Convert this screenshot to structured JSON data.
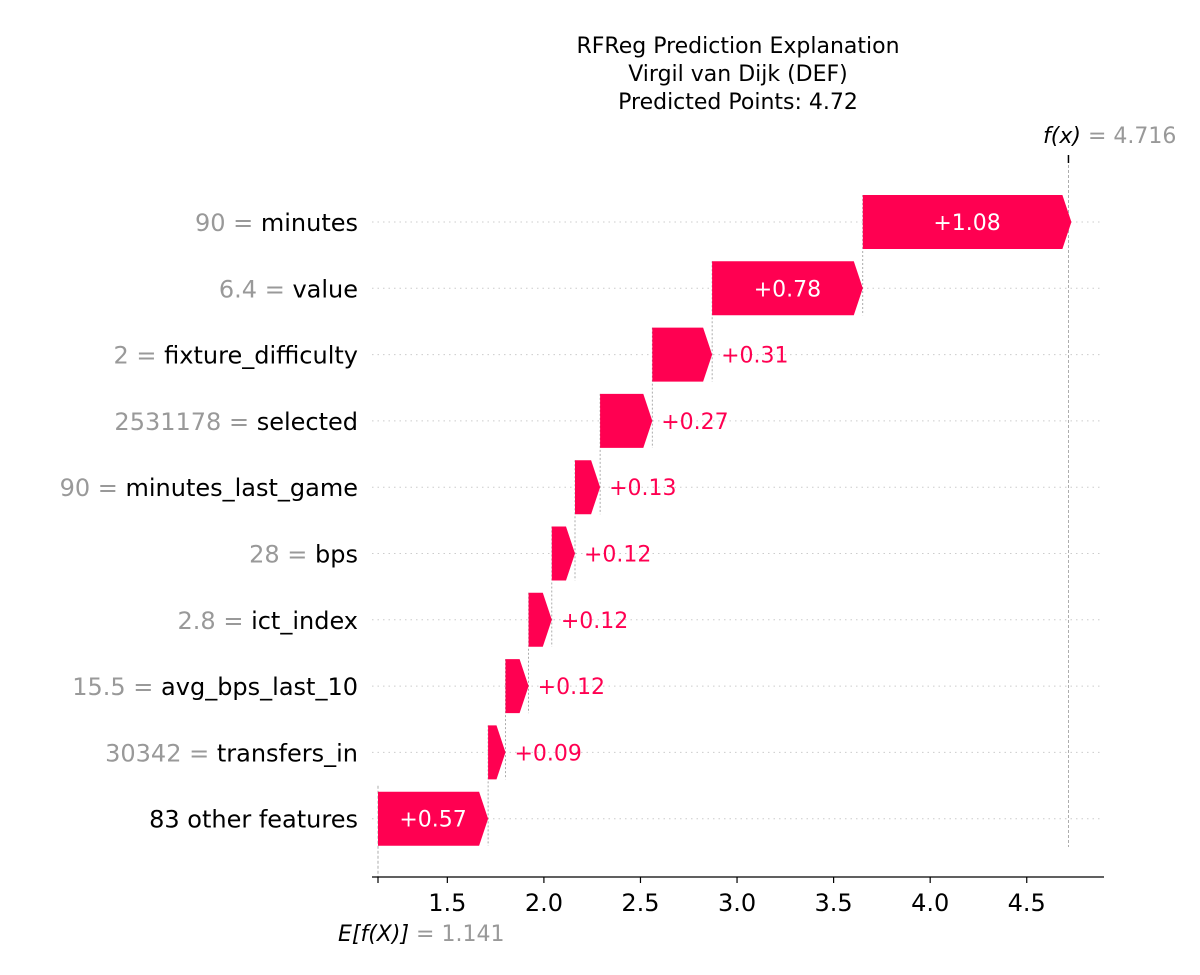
{
  "chart_data": {
    "type": "waterfall",
    "title_lines": [
      "RFReg Prediction Explanation",
      "Virgil van Dijk (DEF)",
      "Predicted Points: 4.72"
    ],
    "base_value": 1.141,
    "base_label": "E[f(X)]",
    "base_value_text": "= 1.141",
    "output_value": 4.716,
    "output_label": "f(x)",
    "output_value_text": "= 4.716",
    "xlim": [
      1.141,
      4.9
    ],
    "xticks": [
      1.5,
      2.0,
      2.5,
      3.0,
      3.5,
      4.0,
      4.5
    ],
    "xtick_labels": [
      "1.5",
      "2.0",
      "2.5",
      "3.0",
      "3.5",
      "4.0",
      "4.5"
    ],
    "features": [
      {
        "value": "90",
        "name": "minutes",
        "shap": 1.08,
        "label": "+1.08"
      },
      {
        "value": "6.4",
        "name": "value",
        "shap": 0.78,
        "label": "+0.78"
      },
      {
        "value": "2",
        "name": "fixture_difficulty",
        "shap": 0.31,
        "label": "+0.31"
      },
      {
        "value": "2531178",
        "name": "selected",
        "shap": 0.27,
        "label": "+0.27"
      },
      {
        "value": "90",
        "name": "minutes_last_game",
        "shap": 0.13,
        "label": "+0.13"
      },
      {
        "value": "28",
        "name": "bps",
        "shap": 0.12,
        "label": "+0.12"
      },
      {
        "value": "2.8",
        "name": "ict_index",
        "shap": 0.12,
        "label": "+0.12"
      },
      {
        "value": "15.5",
        "name": "avg_bps_last_10",
        "shap": 0.12,
        "label": "+0.12"
      },
      {
        "value": "30342",
        "name": "transfers_in",
        "shap": 0.09,
        "label": "+0.09"
      },
      {
        "value": "",
        "name": "83 other features",
        "shap": 0.57,
        "label": "+0.57"
      }
    ],
    "colors": {
      "positive": "#ff0051",
      "value_gray": "#999999",
      "grid": "#cccccc"
    },
    "grid": true
  }
}
